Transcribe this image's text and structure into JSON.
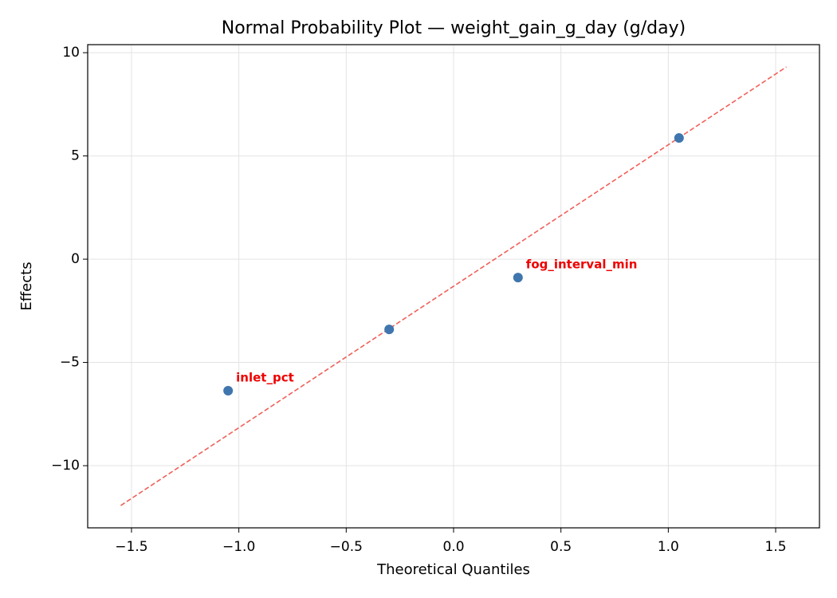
{
  "chart_data": {
    "type": "scatter",
    "title": "Normal Probability Plot — weight_gain_g_day (g/day)",
    "x_label": "Theoretical Quantiles",
    "y_label": "Effects",
    "x": [
      -1.05,
      -0.3,
      0.3,
      1.05
    ],
    "values": [
      -6.37,
      -3.4,
      -0.89,
      5.87
    ],
    "point_labels": [
      "inlet_pct",
      null,
      "fog_interval_min",
      null
    ],
    "color": "#3f76ae",
    "label_color": "#ee0000",
    "reference_line": {
      "x": [
        -1.55,
        1.55
      ],
      "values": [
        -11.93,
        9.31
      ],
      "color": "#f0605a",
      "dashed": true
    },
    "xlim": [
      -1.704,
      1.704
    ],
    "ylim": [
      -13.01,
      10.39
    ],
    "xticks": [
      {
        "value": -1.5,
        "label": "−1.5"
      },
      {
        "value": -1,
        "label": "−1.0"
      },
      {
        "value": -0.5,
        "label": "−0.5"
      },
      {
        "value": 0,
        "label": "0.0"
      },
      0.5,
      {
        "value": 1,
        "label": "1.0"
      },
      1.5
    ],
    "yticks": [
      {
        "value": -10,
        "label": "−10"
      },
      {
        "value": -5,
        "label": "−5"
      },
      0,
      5,
      10
    ],
    "grid": true
  }
}
